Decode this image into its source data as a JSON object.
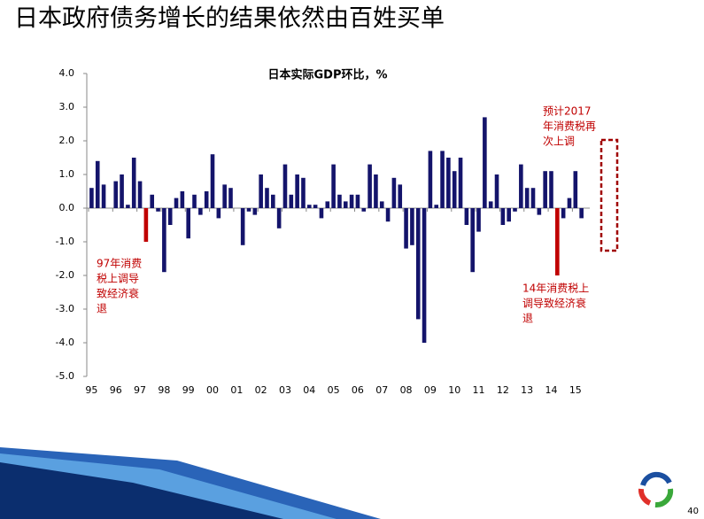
{
  "page_title": "日本政府债务增长的结果依然由百姓买单",
  "page_number": "40",
  "chart_data": {
    "type": "bar",
    "title": "日本实际GDP环比，%",
    "categories": [
      "95",
      null,
      null,
      null,
      "96",
      null,
      null,
      null,
      "97",
      null,
      null,
      null,
      "98",
      null,
      null,
      null,
      "99",
      null,
      null,
      null,
      "00",
      null,
      null,
      null,
      "01",
      null,
      null,
      null,
      "02",
      null,
      null,
      null,
      "03",
      null,
      null,
      null,
      "04",
      null,
      null,
      null,
      "05",
      null,
      null,
      null,
      "06",
      null,
      null,
      null,
      "07",
      null,
      null,
      null,
      "08",
      null,
      null,
      null,
      "09",
      null,
      null,
      null,
      "10",
      null,
      null,
      null,
      "11",
      null,
      null,
      null,
      "12",
      null,
      null,
      null,
      "13",
      null,
      null,
      null,
      "14",
      null,
      null,
      null,
      "15",
      null
    ],
    "values": [
      0.6,
      1.4,
      0.7,
      0.0,
      0.8,
      1.0,
      0.1,
      1.5,
      0.8,
      -1.0,
      0.4,
      -0.1,
      -1.9,
      -0.5,
      0.3,
      0.5,
      -0.9,
      0.4,
      -0.2,
      0.5,
      1.6,
      -0.3,
      0.7,
      0.6,
      0.0,
      -1.1,
      -0.1,
      -0.2,
      1.0,
      0.6,
      0.4,
      -0.6,
      1.3,
      0.4,
      1.0,
      0.9,
      0.1,
      0.1,
      -0.3,
      0.2,
      1.3,
      0.4,
      0.2,
      0.4,
      0.4,
      -0.1,
      1.3,
      1.0,
      0.2,
      -0.4,
      0.9,
      0.7,
      -1.2,
      -1.1,
      -3.3,
      -4.0,
      1.7,
      0.1,
      1.7,
      1.5,
      1.1,
      1.5,
      -0.5,
      -1.9,
      -0.7,
      2.7,
      0.2,
      1.0,
      -0.5,
      -0.4,
      -0.1,
      1.3,
      0.6,
      0.6,
      -0.2,
      1.1,
      1.1,
      -2.0,
      -0.3,
      0.3,
      1.1,
      -0.3
    ],
    "color": "#14146b",
    "highlight": {
      "color": "#c00000",
      "indices": [
        9,
        77
      ]
    },
    "ylim": [
      -5,
      4
    ],
    "yticks": [
      {
        "value": 4,
        "label": "4.0"
      },
      {
        "value": 3,
        "label": "3.0"
      },
      {
        "value": 2,
        "label": "2.0"
      },
      {
        "value": 1,
        "label": "1.0"
      },
      {
        "value": 0,
        "label": "0.0"
      },
      {
        "value": -1,
        "label": "-1.0"
      },
      {
        "value": -2,
        "label": "-2.0"
      },
      {
        "value": -3,
        "label": "-3.0"
      },
      {
        "value": -4,
        "label": "-4.0"
      },
      {
        "value": -5,
        "label": "-5.0"
      }
    ],
    "annotations": [
      {
        "lines": [
          "97年消费",
          "税上调导",
          "致经济衰",
          "退"
        ]
      },
      {
        "lines": [
          "14年消费税上",
          "调导致经济衰",
          "退"
        ]
      },
      {
        "lines": [
          "预计2017",
          "年消费税再",
          "次上调"
        ]
      }
    ]
  }
}
